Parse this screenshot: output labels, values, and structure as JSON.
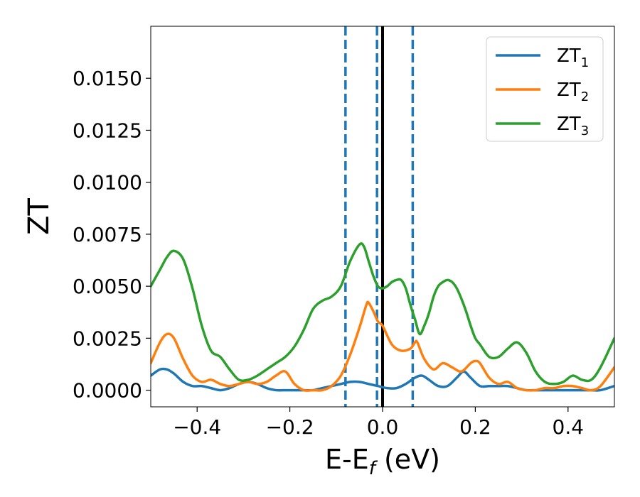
{
  "chart_data": {
    "type": "line",
    "xlabel": "E-E",
    "xlabel_sub": "f",
    "xlabel_unit": " (eV)",
    "ylabel": "ZT",
    "xlim": [
      -0.5,
      0.5
    ],
    "ylim": [
      -0.0008,
      0.0175
    ],
    "xticks": [
      -0.4,
      -0.2,
      0.0,
      0.2,
      0.4
    ],
    "xtick_labels": [
      "−0.4",
      "−0.2",
      "0.0",
      "0.2",
      "0.4"
    ],
    "yticks": [
      0.0,
      0.0025,
      0.005,
      0.0075,
      0.01,
      0.0125,
      0.015
    ],
    "ytick_labels": [
      "0.0000",
      "0.0025",
      "0.0050",
      "0.0075",
      "0.0100",
      "0.0125",
      "0.0150"
    ],
    "grid": false,
    "legend_position": "top-right",
    "vlines": [
      {
        "x": -0.08,
        "style": "dashed",
        "color": "#1f77b4"
      },
      {
        "x": -0.012,
        "style": "dashed",
        "color": "#1f77b4"
      },
      {
        "x": 0.0,
        "style": "solid",
        "color": "#000000"
      },
      {
        "x": 0.065,
        "style": "dashed",
        "color": "#1f77b4"
      }
    ],
    "series": [
      {
        "name": "ZT",
        "name_sub": "1",
        "color": "#1f77b4",
        "x": [
          -0.5,
          -0.48,
          -0.465,
          -0.45,
          -0.43,
          -0.41,
          -0.39,
          -0.37,
          -0.35,
          -0.33,
          -0.31,
          -0.29,
          -0.27,
          -0.25,
          -0.23,
          -0.21,
          -0.19,
          -0.17,
          -0.15,
          -0.13,
          -0.11,
          -0.09,
          -0.07,
          -0.05,
          -0.03,
          -0.01,
          0.01,
          0.03,
          0.05,
          0.07,
          0.085,
          0.1,
          0.12,
          0.14,
          0.16,
          0.175,
          0.19,
          0.21,
          0.23,
          0.25,
          0.27,
          0.29,
          0.31,
          0.33,
          0.35,
          0.37,
          0.39,
          0.41,
          0.43,
          0.45,
          0.47,
          0.5
        ],
        "y": [
          0.0007,
          0.001,
          0.001,
          0.0008,
          0.0004,
          0.0002,
          0.0002,
          0.0001,
          0.0,
          0.0001,
          0.0003,
          0.0004,
          0.0003,
          0.0001,
          0.0,
          0.0,
          0.0,
          0.0,
          0.0,
          0.0001,
          0.0002,
          0.0003,
          0.0004,
          0.0004,
          0.0003,
          0.0002,
          0.0001,
          0.0001,
          0.0003,
          0.0006,
          0.0007,
          0.0005,
          0.0002,
          0.0002,
          0.0006,
          0.0009,
          0.0006,
          0.0002,
          0.0002,
          0.0002,
          0.0002,
          0.0001,
          0.0,
          0.0,
          0.0,
          0.0,
          0.0,
          0.0,
          0.0,
          0.0,
          0.0,
          0.0002
        ]
      },
      {
        "name": "ZT",
        "name_sub": "2",
        "color": "#ff7f0e",
        "x": [
          -0.5,
          -0.48,
          -0.465,
          -0.45,
          -0.43,
          -0.41,
          -0.39,
          -0.37,
          -0.35,
          -0.33,
          -0.31,
          -0.29,
          -0.27,
          -0.25,
          -0.23,
          -0.21,
          -0.19,
          -0.17,
          -0.15,
          -0.13,
          -0.11,
          -0.09,
          -0.07,
          -0.05,
          -0.035,
          -0.03,
          -0.02,
          -0.01,
          0.0,
          0.02,
          0.04,
          0.06,
          0.07,
          0.075,
          0.09,
          0.11,
          0.13,
          0.15,
          0.17,
          0.19,
          0.2,
          0.21,
          0.23,
          0.25,
          0.27,
          0.29,
          0.31,
          0.33,
          0.35,
          0.37,
          0.39,
          0.41,
          0.43,
          0.45,
          0.47,
          0.5
        ],
        "y": [
          0.0013,
          0.0023,
          0.0027,
          0.0025,
          0.0015,
          0.0007,
          0.0004,
          0.0005,
          0.0003,
          0.0002,
          0.0003,
          0.0004,
          0.0003,
          0.0004,
          0.0007,
          0.0009,
          0.0003,
          0.0,
          0.0,
          0.0,
          0.0002,
          0.0007,
          0.0017,
          0.003,
          0.0041,
          0.0042,
          0.0038,
          0.0033,
          0.0031,
          0.0022,
          0.0019,
          0.002,
          0.0023,
          0.0023,
          0.0015,
          0.001,
          0.0013,
          0.0011,
          0.0009,
          0.0013,
          0.0014,
          0.0013,
          0.0006,
          0.0003,
          0.0004,
          0.0001,
          0.0,
          0.0,
          0.0001,
          0.0001,
          0.0002,
          0.0002,
          0.0001,
          0.0,
          0.0002,
          0.0011
        ]
      },
      {
        "name": "ZT",
        "name_sub": "3",
        "color": "#2ca02c",
        "x": [
          -0.5,
          -0.48,
          -0.465,
          -0.45,
          -0.43,
          -0.41,
          -0.39,
          -0.37,
          -0.35,
          -0.33,
          -0.31,
          -0.29,
          -0.27,
          -0.25,
          -0.23,
          -0.21,
          -0.19,
          -0.17,
          -0.15,
          -0.13,
          -0.11,
          -0.09,
          -0.07,
          -0.05,
          -0.04,
          -0.03,
          -0.02,
          -0.01,
          0.0,
          0.01,
          0.02,
          0.03,
          0.04,
          0.05,
          0.06,
          0.07,
          0.08,
          0.09,
          0.1,
          0.11,
          0.12,
          0.13,
          0.14,
          0.15,
          0.16,
          0.17,
          0.18,
          0.19,
          0.2,
          0.21,
          0.23,
          0.25,
          0.27,
          0.29,
          0.31,
          0.33,
          0.35,
          0.37,
          0.39,
          0.41,
          0.43,
          0.45,
          0.47,
          0.5
        ],
        "y": [
          0.005,
          0.0058,
          0.0064,
          0.0067,
          0.0063,
          0.0049,
          0.0031,
          0.0019,
          0.0016,
          0.001,
          0.0005,
          0.0005,
          0.0007,
          0.001,
          0.0013,
          0.0016,
          0.0021,
          0.0029,
          0.0039,
          0.0043,
          0.0045,
          0.005,
          0.0062,
          0.007,
          0.0069,
          0.0062,
          0.0055,
          0.005,
          0.0049,
          0.005,
          0.0052,
          0.0053,
          0.0053,
          0.0049,
          0.0041,
          0.0034,
          0.0027,
          0.0031,
          0.0037,
          0.0045,
          0.005,
          0.0052,
          0.0053,
          0.0052,
          0.0049,
          0.0044,
          0.0038,
          0.0031,
          0.0025,
          0.0022,
          0.0016,
          0.0016,
          0.002,
          0.0023,
          0.0018,
          0.0009,
          0.0004,
          0.0003,
          0.0004,
          0.0007,
          0.0005,
          0.0005,
          0.0011,
          0.0025
        ]
      }
    ]
  }
}
